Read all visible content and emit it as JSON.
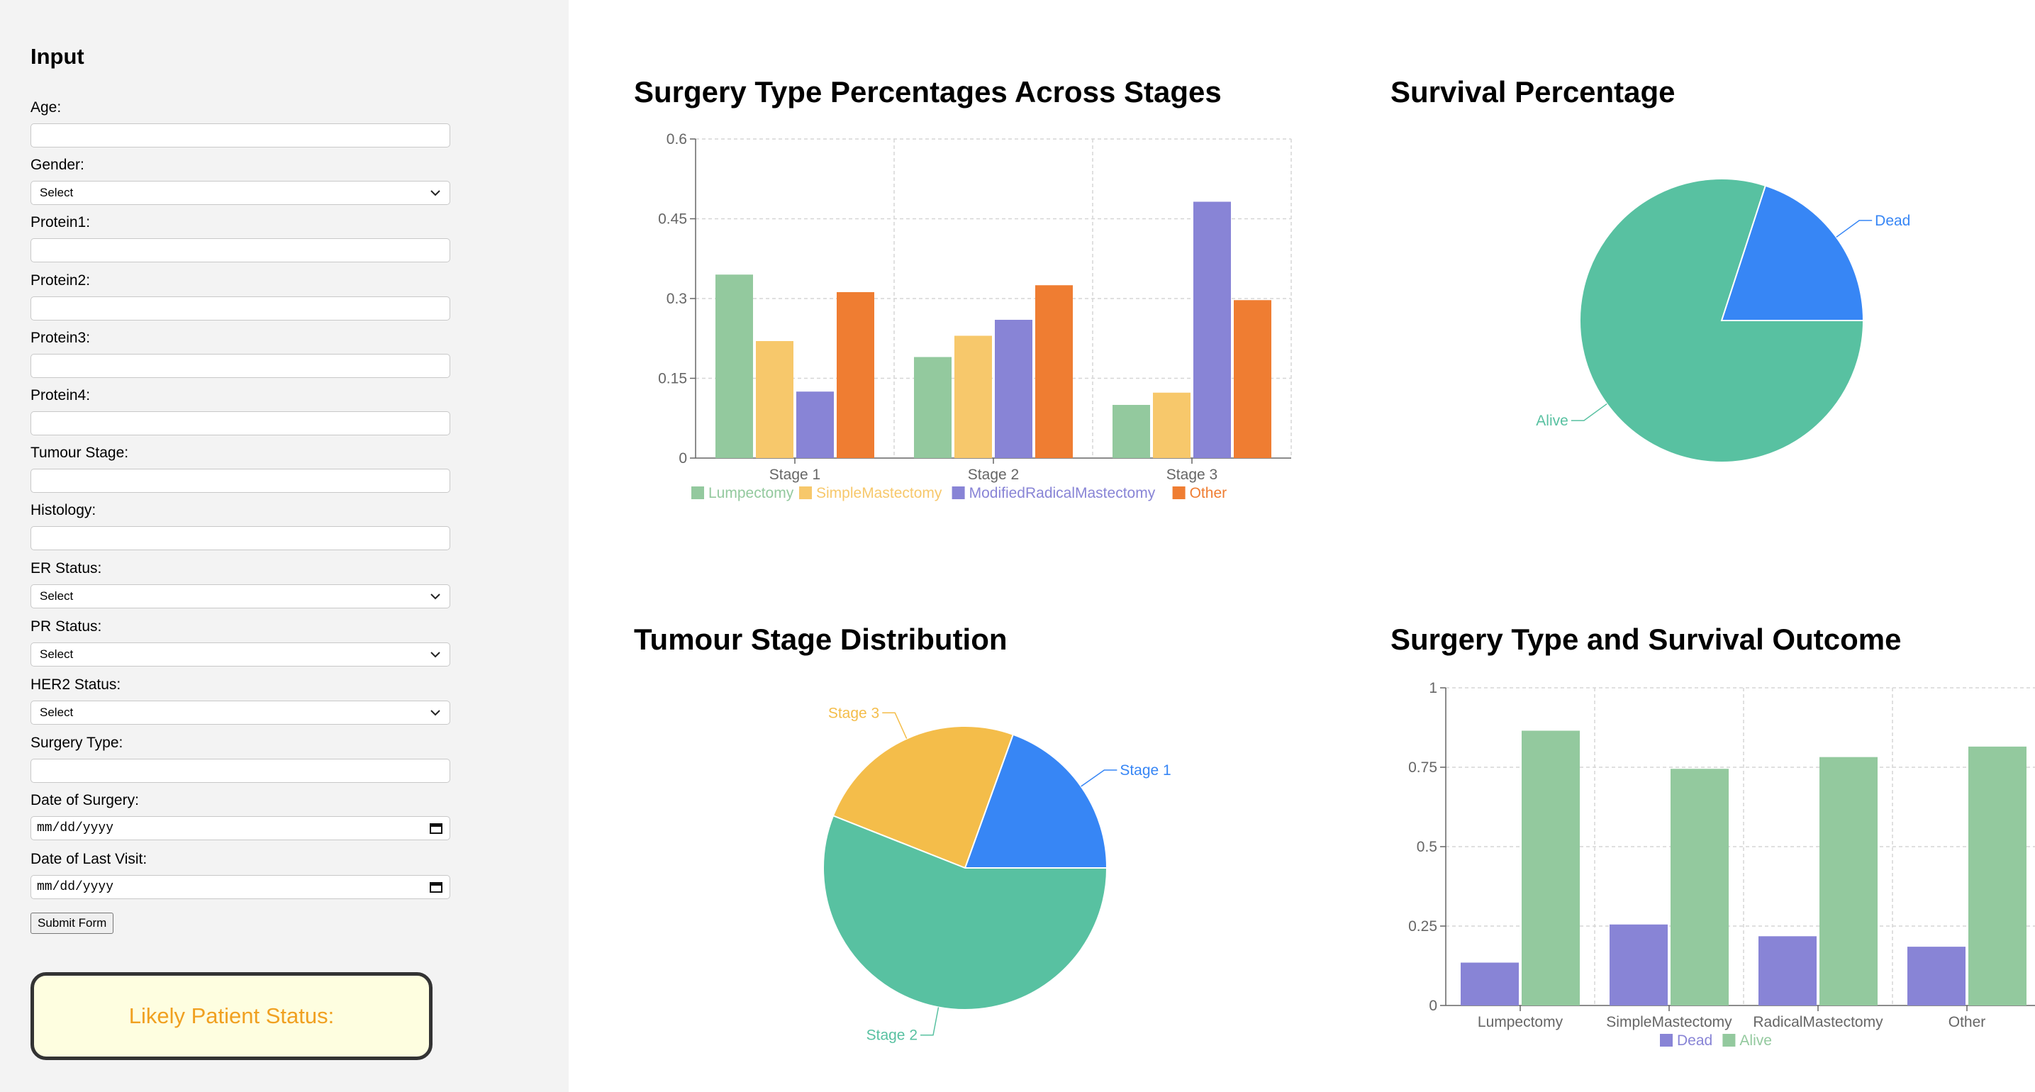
{
  "sidebar": {
    "title": "Input",
    "fields": [
      {
        "label": "Age:",
        "type": "text",
        "value": ""
      },
      {
        "label": "Gender:",
        "type": "select",
        "value": "Select"
      },
      {
        "label": "Protein1:",
        "type": "text",
        "value": ""
      },
      {
        "label": "Protein2:",
        "type": "text",
        "value": ""
      },
      {
        "label": "Protein3:",
        "type": "text",
        "value": ""
      },
      {
        "label": "Protein4:",
        "type": "text",
        "value": ""
      },
      {
        "label": "Tumour Stage:",
        "type": "text",
        "value": ""
      },
      {
        "label": "Histology:",
        "type": "text",
        "value": ""
      },
      {
        "label": "ER Status:",
        "type": "select",
        "value": "Select"
      },
      {
        "label": "PR Status:",
        "type": "select",
        "value": "Select"
      },
      {
        "label": "HER2 Status:",
        "type": "select",
        "value": "Select"
      },
      {
        "label": "Surgery Type:",
        "type": "text",
        "value": ""
      },
      {
        "label": "Date of Surgery:",
        "type": "date",
        "value": "mm/dd/yyyy"
      },
      {
        "label": "Date of Last Visit:",
        "type": "date",
        "value": "mm/dd/yyyy"
      }
    ],
    "submit_label": "Submit Form",
    "status_text": "Likely Patient Status:"
  },
  "colors": {
    "lumpectomy": "#93c99e",
    "simple_mastectomy": "#f7c86b",
    "modified_radical": "#8884d6",
    "other": "#ef7d32",
    "alive": "#58c1a1",
    "dead": "#3786f5",
    "stage3": "#f4bd4a",
    "bar_dead": "#8884d6",
    "bar_alive": "#93c99e",
    "status_text": "#f0a020"
  },
  "chart_data": [
    {
      "id": "surgery-stages",
      "type": "bar",
      "title": "Surgery Type Percentages Across Stages",
      "categories": [
        "Stage 1",
        "Stage 2",
        "Stage 3"
      ],
      "series": [
        {
          "name": "Lumpectomy",
          "values": [
            0.345,
            0.19,
            0.1
          ]
        },
        {
          "name": "SimpleMastectomy",
          "values": [
            0.22,
            0.23,
            0.123
          ]
        },
        {
          "name": "ModifiedRadicalMastectomy",
          "values": [
            0.125,
            0.26,
            0.482
          ]
        },
        {
          "name": "Other",
          "values": [
            0.312,
            0.325,
            0.297
          ]
        }
      ],
      "yticks": [
        "0",
        "0.15",
        "0.3",
        "0.45",
        "0.6"
      ],
      "ylim": [
        0,
        0.6
      ],
      "legend": "bottom"
    },
    {
      "id": "survival",
      "type": "pie",
      "title": "Survival Percentage",
      "labels": [
        "Dead",
        "Alive"
      ],
      "values": [
        0.2,
        0.8
      ]
    },
    {
      "id": "tumour-stage",
      "type": "pie",
      "title": "Tumour Stage Distribution",
      "labels": [
        "Stage 1",
        "Stage 3",
        "Stage 2"
      ],
      "values": [
        0.195,
        0.245,
        0.56
      ]
    },
    {
      "id": "surgery-survival",
      "type": "bar",
      "title": "Surgery Type and Survival Outcome",
      "categories": [
        "Lumpectomy",
        "SimpleMastectomy",
        "RadicalMastectomy",
        "Other"
      ],
      "series": [
        {
          "name": "Dead",
          "values": [
            0.135,
            0.255,
            0.218,
            0.185
          ]
        },
        {
          "name": "Alive",
          "values": [
            0.865,
            0.745,
            0.782,
            0.815
          ]
        }
      ],
      "yticks": [
        "0",
        "0.25",
        "0.5",
        "0.75",
        "1"
      ],
      "ylim": [
        0,
        1
      ],
      "legend": "bottom"
    }
  ]
}
